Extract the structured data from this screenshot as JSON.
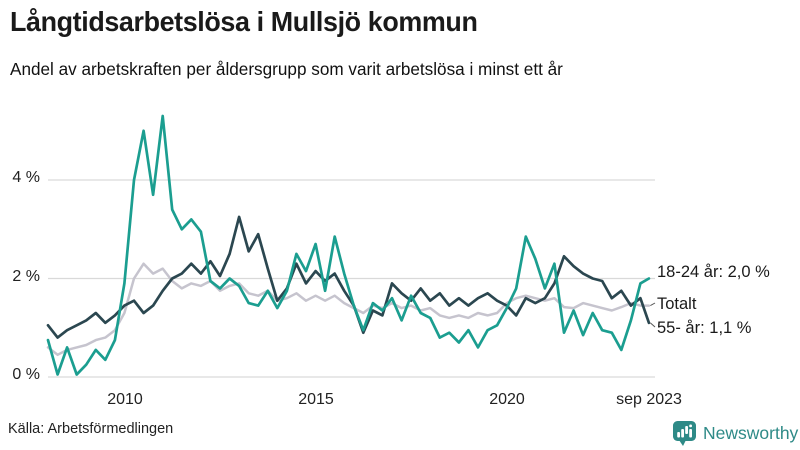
{
  "header": {
    "title": "Långtidsarbetslösa i Mullsjö kommun",
    "subtitle": "Andel av arbetskraften per åldersgrupp som varit arbetslösa i minst ett år"
  },
  "footer": {
    "source": "Källa: Arbetsförmedlingen",
    "brand": "Newsworthy"
  },
  "colors": {
    "teal_line": "#1b9e90",
    "dark_line": "#2b4750",
    "gray_line": "#c6c4ce",
    "grid": "#d9d9d9",
    "brand_teal": "#2e8a87",
    "text": "#1a1a1a"
  },
  "chart_data": {
    "type": "line",
    "title": "Långtidsarbetslösa i Mullsjö kommun",
    "subtitle": "Andel av arbetskraften per åldersgrupp som varit arbetslösa i minst ett år",
    "unit": "% av arbetskraften",
    "grid": "horizontal",
    "legend_position": "right-end-labels",
    "x_axis": {
      "range": [
        2008.0,
        2023.75
      ],
      "ticks": [
        {
          "x": 2010,
          "label": "2010"
        },
        {
          "x": 2015,
          "label": "2015"
        },
        {
          "x": 2020,
          "label": "2020"
        },
        {
          "x": 2023.72,
          "label": "sep 2023"
        }
      ]
    },
    "y_axis": {
      "range": [
        0,
        5.6
      ],
      "ticks": [
        {
          "v": 0,
          "label": "0 %"
        },
        {
          "v": 2,
          "label": "2 %"
        },
        {
          "v": 4,
          "label": "4 %"
        }
      ]
    },
    "series": [
      {
        "name": "Totalt",
        "end_label": "Totalt",
        "color": "#c6c4ce",
        "width": 2.5,
        "leader": true,
        "points": [
          [
            2008.0,
            0.6
          ],
          [
            2008.25,
            0.45
          ],
          [
            2008.5,
            0.55
          ],
          [
            2008.75,
            0.6
          ],
          [
            2009.0,
            0.65
          ],
          [
            2009.25,
            0.75
          ],
          [
            2009.5,
            0.8
          ],
          [
            2009.75,
            0.95
          ],
          [
            2010.0,
            1.3
          ],
          [
            2010.25,
            2.0
          ],
          [
            2010.5,
            2.3
          ],
          [
            2010.75,
            2.1
          ],
          [
            2011.0,
            2.2
          ],
          [
            2011.25,
            1.95
          ],
          [
            2011.5,
            1.8
          ],
          [
            2011.75,
            1.9
          ],
          [
            2012.0,
            1.85
          ],
          [
            2012.25,
            1.95
          ],
          [
            2012.5,
            1.75
          ],
          [
            2012.75,
            1.85
          ],
          [
            2013.0,
            1.9
          ],
          [
            2013.25,
            1.7
          ],
          [
            2013.5,
            1.65
          ],
          [
            2013.75,
            1.75
          ],
          [
            2014.0,
            1.55
          ],
          [
            2014.25,
            1.6
          ],
          [
            2014.5,
            1.7
          ],
          [
            2014.75,
            1.55
          ],
          [
            2015.0,
            1.65
          ],
          [
            2015.25,
            1.55
          ],
          [
            2015.5,
            1.65
          ],
          [
            2015.75,
            1.5
          ],
          [
            2016.0,
            1.4
          ],
          [
            2016.25,
            1.3
          ],
          [
            2016.5,
            1.45
          ],
          [
            2016.75,
            1.4
          ],
          [
            2017.0,
            1.5
          ],
          [
            2017.25,
            1.4
          ],
          [
            2017.5,
            1.45
          ],
          [
            2017.75,
            1.35
          ],
          [
            2018.0,
            1.4
          ],
          [
            2018.25,
            1.25
          ],
          [
            2018.5,
            1.2
          ],
          [
            2018.75,
            1.25
          ],
          [
            2019.0,
            1.2
          ],
          [
            2019.25,
            1.3
          ],
          [
            2019.5,
            1.25
          ],
          [
            2019.75,
            1.3
          ],
          [
            2020.0,
            1.5
          ],
          [
            2020.25,
            1.6
          ],
          [
            2020.5,
            1.65
          ],
          [
            2020.75,
            1.6
          ],
          [
            2021.0,
            1.55
          ],
          [
            2021.25,
            1.6
          ],
          [
            2021.5,
            1.42
          ],
          [
            2021.75,
            1.4
          ],
          [
            2022.0,
            1.5
          ],
          [
            2022.25,
            1.45
          ],
          [
            2022.5,
            1.4
          ],
          [
            2022.75,
            1.35
          ],
          [
            2023.0,
            1.42
          ],
          [
            2023.25,
            1.5
          ],
          [
            2023.5,
            1.45
          ],
          [
            2023.72,
            1.45
          ]
        ]
      },
      {
        "name": "55- år",
        "end_label": "55- år: 1,1 %",
        "last_value_label": "1,1 %",
        "color": "#2b4750",
        "width": 2.7,
        "leader": true,
        "points": [
          [
            2008.0,
            1.05
          ],
          [
            2008.25,
            0.8
          ],
          [
            2008.5,
            0.95
          ],
          [
            2008.75,
            1.05
          ],
          [
            2009.0,
            1.15
          ],
          [
            2009.25,
            1.3
          ],
          [
            2009.5,
            1.1
          ],
          [
            2009.75,
            1.25
          ],
          [
            2010.0,
            1.45
          ],
          [
            2010.25,
            1.55
          ],
          [
            2010.5,
            1.3
          ],
          [
            2010.75,
            1.45
          ],
          [
            2011.0,
            1.75
          ],
          [
            2011.25,
            2.0
          ],
          [
            2011.5,
            2.1
          ],
          [
            2011.75,
            2.3
          ],
          [
            2012.0,
            2.1
          ],
          [
            2012.25,
            2.35
          ],
          [
            2012.5,
            2.05
          ],
          [
            2012.75,
            2.5
          ],
          [
            2013.0,
            3.25
          ],
          [
            2013.25,
            2.55
          ],
          [
            2013.5,
            2.9
          ],
          [
            2013.75,
            2.2
          ],
          [
            2014.0,
            1.55
          ],
          [
            2014.25,
            1.8
          ],
          [
            2014.5,
            2.3
          ],
          [
            2014.75,
            1.9
          ],
          [
            2015.0,
            2.15
          ],
          [
            2015.25,
            1.95
          ],
          [
            2015.5,
            2.1
          ],
          [
            2015.75,
            1.75
          ],
          [
            2016.0,
            1.45
          ],
          [
            2016.25,
            0.9
          ],
          [
            2016.5,
            1.35
          ],
          [
            2016.75,
            1.25
          ],
          [
            2017.0,
            1.9
          ],
          [
            2017.25,
            1.7
          ],
          [
            2017.5,
            1.55
          ],
          [
            2017.75,
            1.8
          ],
          [
            2018.0,
            1.55
          ],
          [
            2018.25,
            1.7
          ],
          [
            2018.5,
            1.45
          ],
          [
            2018.75,
            1.6
          ],
          [
            2019.0,
            1.45
          ],
          [
            2019.25,
            1.6
          ],
          [
            2019.5,
            1.7
          ],
          [
            2019.75,
            1.55
          ],
          [
            2020.0,
            1.45
          ],
          [
            2020.25,
            1.25
          ],
          [
            2020.5,
            1.6
          ],
          [
            2020.75,
            1.5
          ],
          [
            2021.0,
            1.6
          ],
          [
            2021.25,
            1.9
          ],
          [
            2021.5,
            2.45
          ],
          [
            2021.75,
            2.25
          ],
          [
            2022.0,
            2.1
          ],
          [
            2022.25,
            2.0
          ],
          [
            2022.5,
            1.95
          ],
          [
            2022.75,
            1.6
          ],
          [
            2023.0,
            1.75
          ],
          [
            2023.25,
            1.45
          ],
          [
            2023.5,
            1.6
          ],
          [
            2023.72,
            1.1
          ]
        ]
      },
      {
        "name": "18-24 år",
        "end_label": "18-24 år: 2,0 %",
        "last_value_label": "2,0 %",
        "color": "#1b9e90",
        "width": 2.7,
        "leader": false,
        "points": [
          [
            2008.0,
            0.75
          ],
          [
            2008.25,
            0.05
          ],
          [
            2008.5,
            0.6
          ],
          [
            2008.75,
            0.05
          ],
          [
            2009.0,
            0.25
          ],
          [
            2009.25,
            0.55
          ],
          [
            2009.5,
            0.35
          ],
          [
            2009.75,
            0.75
          ],
          [
            2010.0,
            1.9
          ],
          [
            2010.25,
            4.0
          ],
          [
            2010.5,
            5.0
          ],
          [
            2010.75,
            3.7
          ],
          [
            2011.0,
            5.3
          ],
          [
            2011.25,
            3.4
          ],
          [
            2011.5,
            3.0
          ],
          [
            2011.75,
            3.2
          ],
          [
            2012.0,
            2.95
          ],
          [
            2012.25,
            1.95
          ],
          [
            2012.5,
            1.8
          ],
          [
            2012.75,
            2.0
          ],
          [
            2013.0,
            1.85
          ],
          [
            2013.25,
            1.5
          ],
          [
            2013.5,
            1.45
          ],
          [
            2013.75,
            1.75
          ],
          [
            2014.0,
            1.4
          ],
          [
            2014.25,
            1.75
          ],
          [
            2014.5,
            2.5
          ],
          [
            2014.75,
            2.15
          ],
          [
            2015.0,
            2.7
          ],
          [
            2015.25,
            1.75
          ],
          [
            2015.5,
            2.85
          ],
          [
            2015.75,
            2.1
          ],
          [
            2016.0,
            1.45
          ],
          [
            2016.25,
            0.95
          ],
          [
            2016.5,
            1.5
          ],
          [
            2016.75,
            1.35
          ],
          [
            2017.0,
            1.6
          ],
          [
            2017.25,
            1.15
          ],
          [
            2017.5,
            1.65
          ],
          [
            2017.75,
            1.3
          ],
          [
            2018.0,
            1.2
          ],
          [
            2018.25,
            0.8
          ],
          [
            2018.5,
            0.9
          ],
          [
            2018.75,
            0.7
          ],
          [
            2019.0,
            0.95
          ],
          [
            2019.25,
            0.6
          ],
          [
            2019.5,
            0.95
          ],
          [
            2019.75,
            1.05
          ],
          [
            2020.0,
            1.4
          ],
          [
            2020.25,
            1.8
          ],
          [
            2020.5,
            2.85
          ],
          [
            2020.75,
            2.4
          ],
          [
            2021.0,
            1.8
          ],
          [
            2021.25,
            2.3
          ],
          [
            2021.5,
            0.9
          ],
          [
            2021.75,
            1.35
          ],
          [
            2022.0,
            0.85
          ],
          [
            2022.25,
            1.3
          ],
          [
            2022.5,
            0.95
          ],
          [
            2022.75,
            0.9
          ],
          [
            2023.0,
            0.55
          ],
          [
            2023.25,
            1.15
          ],
          [
            2023.5,
            1.9
          ],
          [
            2023.72,
            2.0
          ]
        ]
      }
    ]
  }
}
